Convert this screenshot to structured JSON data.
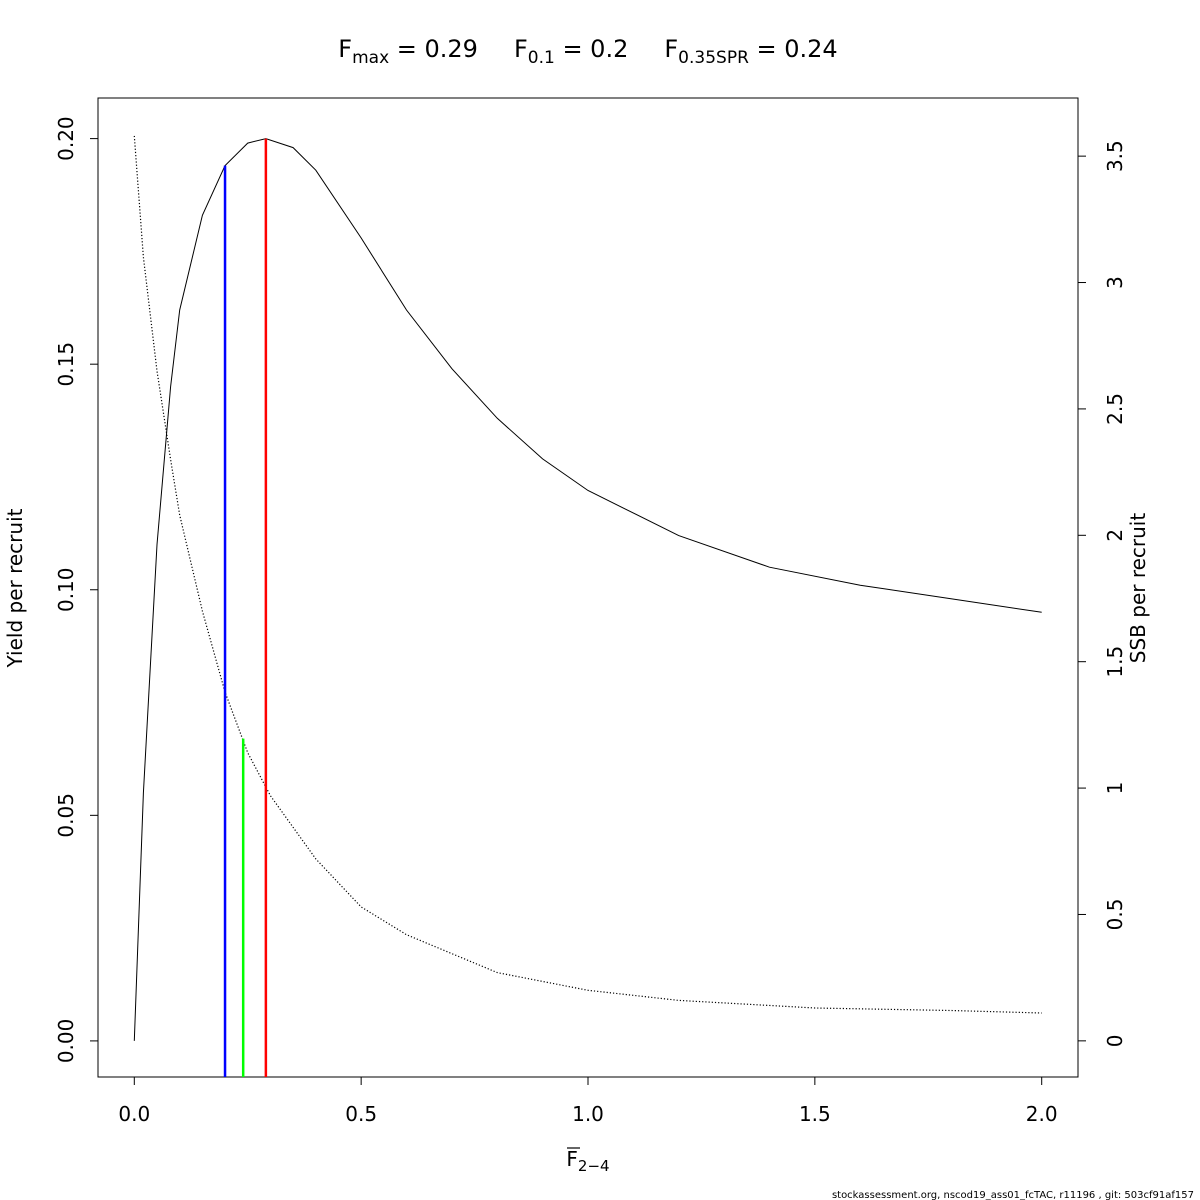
{
  "chart_data": {
    "type": "line",
    "title": [
      {
        "symbol": "F",
        "sub": "max",
        "value": "= 0.29"
      },
      {
        "symbol": "F",
        "sub": "0.1",
        "value": "= 0.2"
      },
      {
        "symbol": "F",
        "sub": "0.35SPR",
        "value": "= 0.24"
      }
    ],
    "xlabel": {
      "symbol": "F",
      "sub": "2−4"
    },
    "ylabel": "Yield per recruit",
    "y2label": "SSB per recruit",
    "xlim": [
      -0.08,
      2.08
    ],
    "ylim": [
      -0.008,
      0.209
    ],
    "y2lim": [
      -0.143,
      3.73
    ],
    "x_ticks": [
      0,
      0.5,
      1,
      1.5,
      2
    ],
    "x_tick_labels": [
      "0.0",
      "0.5",
      "1.0",
      "1.5",
      "2.0"
    ],
    "y_ticks": [
      0,
      0.05,
      0.1,
      0.15,
      0.2
    ],
    "y_tick_labels": [
      "0.00",
      "0.05",
      "0.10",
      "0.15",
      "0.20"
    ],
    "y2_ticks": [
      0,
      0.5,
      1,
      1.5,
      2,
      2.5,
      3,
      3.5
    ],
    "y2_tick_labels": [
      "0",
      "0.5",
      "1",
      "1.5",
      "2",
      "2.5",
      "3",
      "3.5"
    ],
    "series": [
      {
        "axis": "left",
        "style": "solid",
        "color": "#000000",
        "x": [
          0,
          0.02,
          0.05,
          0.08,
          0.1,
          0.15,
          0.2,
          0.25,
          0.29,
          0.35,
          0.4,
          0.5,
          0.6,
          0.7,
          0.8,
          0.9,
          1.0,
          1.2,
          1.4,
          1.6,
          1.8,
          2.0
        ],
        "y": [
          0,
          0.055,
          0.11,
          0.145,
          0.162,
          0.183,
          0.194,
          0.199,
          0.2,
          0.198,
          0.193,
          0.178,
          0.162,
          0.149,
          0.138,
          0.129,
          0.122,
          0.112,
          0.105,
          0.101,
          0.098,
          0.095
        ]
      },
      {
        "axis": "right",
        "style": "dotted",
        "color": "#000000",
        "x": [
          0,
          0.02,
          0.05,
          0.08,
          0.1,
          0.15,
          0.2,
          0.25,
          0.3,
          0.4,
          0.5,
          0.6,
          0.8,
          1.0,
          1.2,
          1.5,
          1.8,
          2.0
        ],
        "y": [
          3.58,
          3.1,
          2.65,
          2.3,
          2.08,
          1.7,
          1.38,
          1.14,
          0.97,
          0.72,
          0.53,
          0.42,
          0.27,
          0.2,
          0.16,
          0.13,
          0.12,
          0.11
        ]
      }
    ],
    "reference_lines": [
      {
        "x": 0.2,
        "y_top": 0.194,
        "color": "#0000ff"
      },
      {
        "x": 0.24,
        "y_top": 0.067,
        "color": "#00ff00"
      },
      {
        "x": 0.29,
        "y_top": 0.2,
        "color": "#ff0000"
      }
    ],
    "footer": "stockassessment.org, nscod19_ass01_fcTAC, r11196 , git: 503cf91af157"
  }
}
